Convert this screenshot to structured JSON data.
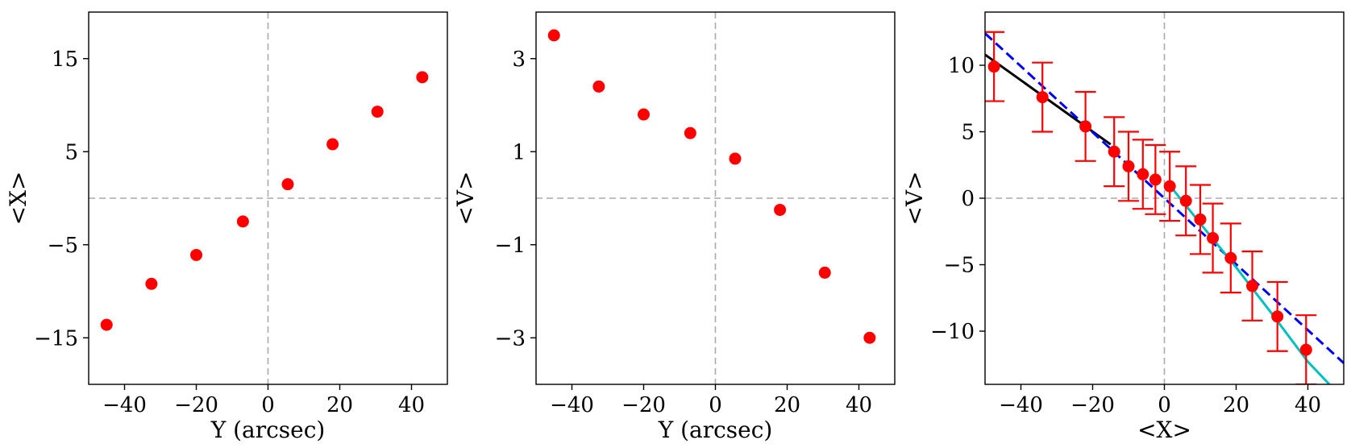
{
  "colors": {
    "points": "#ff0000",
    "refline": "#aaaaaa",
    "fit_black": "#000000",
    "fit_dashed": "#0000ff",
    "fit_cyan": "#00bfbf"
  },
  "chart_data": [
    {
      "type": "scatter",
      "xlabel": "Y (arcsec)",
      "ylabel": "<X>",
      "xlim": [
        -50,
        50
      ],
      "ylim": [
        -20,
        20
      ],
      "xticks": [
        -40,
        -20,
        0,
        20,
        40
      ],
      "xtick_labels": [
        "−40",
        "−20",
        "0",
        "20",
        "40"
      ],
      "yticks": [
        -15,
        -5,
        5,
        15
      ],
      "ytick_labels": [
        "−15",
        "−5",
        "5",
        "15"
      ],
      "reference_lines": {
        "x": 0,
        "y": 0,
        "style": "dashed"
      },
      "grid": false,
      "series": [
        {
          "x": [
            -45,
            -32.5,
            -20,
            -7,
            5.5,
            18,
            30.5,
            43
          ],
          "y": [
            -13.6,
            -9.2,
            -6.1,
            -2.5,
            1.5,
            5.8,
            9.3,
            13.0
          ]
        }
      ]
    },
    {
      "type": "scatter",
      "xlabel": "Y (arcsec)",
      "ylabel": "<V>",
      "xlim": [
        -50,
        50
      ],
      "ylim": [
        -4,
        4
      ],
      "xticks": [
        -40,
        -20,
        0,
        20,
        40
      ],
      "xtick_labels": [
        "−40",
        "−20",
        "0",
        "20",
        "40"
      ],
      "yticks": [
        -3,
        -1,
        1,
        3
      ],
      "ytick_labels": [
        "−3",
        "−1",
        "1",
        "3"
      ],
      "reference_lines": {
        "x": 0,
        "y": 0,
        "style": "dashed"
      },
      "grid": false,
      "series": [
        {
          "x": [
            -45,
            -32.5,
            -20,
            -7,
            5.5,
            18,
            30.5,
            43
          ],
          "y": [
            3.5,
            2.4,
            1.8,
            1.4,
            0.85,
            -0.25,
            -1.6,
            -3.0
          ]
        }
      ]
    },
    {
      "type": "scatter",
      "xlabel": "<X>",
      "ylabel": "<V>",
      "xlim": [
        -50,
        50
      ],
      "ylim": [
        -14,
        14
      ],
      "xticks": [
        -40,
        -20,
        0,
        20,
        40
      ],
      "xtick_labels": [
        "−40",
        "−20",
        "0",
        "20",
        "40"
      ],
      "yticks": [
        -10,
        -5,
        0,
        5,
        10
      ],
      "ytick_labels": [
        "−10",
        "−5",
        "0",
        "5",
        "10"
      ],
      "reference_lines": {
        "x": 0,
        "y": 0,
        "style": "dashed"
      },
      "grid": false,
      "series": [
        {
          "x": [
            -47.5,
            -34,
            -22,
            -14,
            -10,
            -6,
            -2.5,
            1.5,
            6,
            10,
            13.5,
            18.5,
            24.5,
            31.5,
            39.5
          ],
          "y": [
            9.9,
            7.6,
            5.4,
            3.5,
            2.4,
            1.8,
            1.4,
            0.9,
            -0.2,
            -1.6,
            -3.0,
            -4.5,
            -6.6,
            -8.9,
            -11.4
          ],
          "yerr": [
            2.6,
            2.6,
            2.6,
            2.6,
            2.6,
            2.6,
            2.6,
            2.6,
            2.6,
            2.6,
            2.6,
            2.6,
            2.6,
            2.6,
            2.6
          ]
        }
      ],
      "fit_lines": [
        {
          "style": "solid",
          "color": "black",
          "x": [
            -50,
            -15
          ],
          "y": [
            10.8,
            4.05
          ]
        },
        {
          "style": "dashed",
          "color": "blue",
          "x": [
            -50,
            50
          ],
          "y": [
            12.4,
            -12.4
          ]
        },
        {
          "style": "solid",
          "color": "cyan",
          "x": [
            2,
            10,
            20,
            30,
            40,
            46
          ],
          "y": [
            0.8,
            -1.9,
            -5.2,
            -8.7,
            -12.3,
            -14.0
          ]
        }
      ]
    }
  ]
}
